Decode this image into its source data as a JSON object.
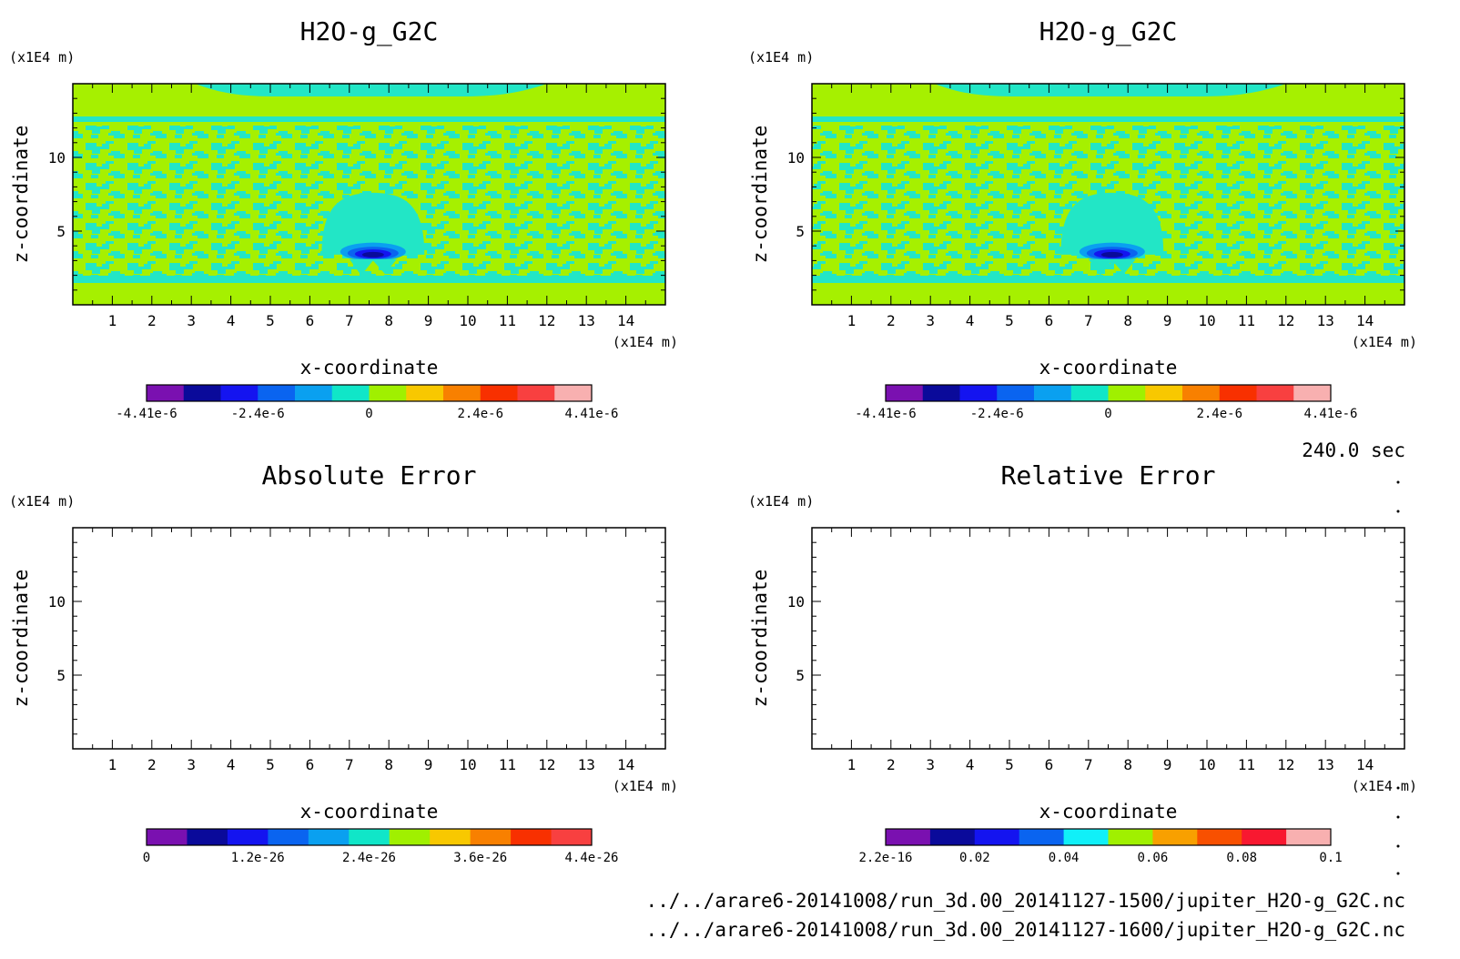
{
  "chart_data": [
    {
      "type": "heatmap",
      "title": "H2O-g_G2C",
      "xlabel": "x-coordinate",
      "ylabel": "z-coordinate",
      "x_unit": "(x1E4 m)",
      "y_unit": "(x1E4 m)",
      "xlim": [
        0,
        15
      ],
      "ylim": [
        0,
        15
      ],
      "x_ticks": [
        "1",
        "2",
        "3",
        "4",
        "5",
        "6",
        "7",
        "8",
        "9",
        "10",
        "11",
        "12",
        "13",
        "14"
      ],
      "y_ticks": [
        "5",
        "10"
      ],
      "colorbar": {
        "colors": [
          "#7a10b0",
          "#0a0a9a",
          "#1414f0",
          "#0a64f0",
          "#0aa0f0",
          "#10e6c8",
          "#a0f000",
          "#f8c800",
          "#f88000",
          "#f83000",
          "#f84040",
          "#f8b0b0"
        ],
        "labels": [
          "-4.41e-6",
          "-2.4e-6",
          "0",
          "2.4e-6",
          "4.41e-6"
        ]
      }
    },
    {
      "type": "heatmap",
      "title": "H2O-g_G2C",
      "xlabel": "x-coordinate",
      "ylabel": "z-coordinate",
      "x_unit": "(x1E4 m)",
      "y_unit": "(x1E4 m)",
      "xlim": [
        0,
        15
      ],
      "ylim": [
        0,
        15
      ],
      "x_ticks": [
        "1",
        "2",
        "3",
        "4",
        "5",
        "6",
        "7",
        "8",
        "9",
        "10",
        "11",
        "12",
        "13",
        "14"
      ],
      "y_ticks": [
        "5",
        "10"
      ],
      "colorbar": {
        "colors": [
          "#7a10b0",
          "#0a0a9a",
          "#1414f0",
          "#0a64f0",
          "#0aa0f0",
          "#10e6c8",
          "#a0f000",
          "#f8c800",
          "#f88000",
          "#f83000",
          "#f84040",
          "#f8b0b0"
        ],
        "labels": [
          "-4.41e-6",
          "-2.4e-6",
          "0",
          "2.4e-6",
          "4.41e-6"
        ]
      }
    },
    {
      "type": "heatmap",
      "title": "Absolute Error",
      "xlabel": "x-coordinate",
      "ylabel": "z-coordinate",
      "x_unit": "(x1E4 m)",
      "y_unit": "(x1E4 m)",
      "xlim": [
        0,
        15
      ],
      "ylim": [
        0,
        15
      ],
      "x_ticks": [
        "1",
        "2",
        "3",
        "4",
        "5",
        "6",
        "7",
        "8",
        "9",
        "10",
        "11",
        "12",
        "13",
        "14"
      ],
      "y_ticks": [
        "5",
        "10"
      ],
      "colorbar": {
        "colors": [
          "#7a10b0",
          "#0a0a9a",
          "#1414f0",
          "#0a64f0",
          "#0aa0f0",
          "#10e6c8",
          "#a0f000",
          "#f8c800",
          "#f88000",
          "#f83000",
          "#f84040"
        ],
        "labels": [
          "0",
          "1.2e-26",
          "2.4e-26",
          "3.6e-26",
          "4.4e-26"
        ]
      }
    },
    {
      "type": "heatmap",
      "title": "Relative Error",
      "xlabel": "x-coordinate",
      "ylabel": "z-coordinate",
      "x_unit": "(x1E4 m)",
      "y_unit": "(x1E4 m)",
      "xlim": [
        0,
        15
      ],
      "ylim": [
        0,
        15
      ],
      "x_ticks": [
        "1",
        "2",
        "3",
        "4",
        "5",
        "6",
        "7",
        "8",
        "9",
        "10",
        "11",
        "12",
        "13",
        "14"
      ],
      "y_ticks": [
        "5",
        "10"
      ],
      "colorbar": {
        "colors": [
          "#7a10b0",
          "#0a0a9a",
          "#1414f0",
          "#0a64f0",
          "#10f0f8",
          "#a0f000",
          "#f8a000",
          "#f85000",
          "#f81830",
          "#f8b0b0"
        ],
        "labels": [
          "2.2e-16",
          "0.02",
          "0.04",
          "0.06",
          "0.08",
          "0.1"
        ]
      }
    }
  ],
  "time_label": "240.0 sec",
  "footer_lines": [
    "../../arare6-20141008/run_3d.00_20141127-1500/jupiter_H2O-g_G2C.nc",
    "../../arare6-20141008/run_3d.00_20141127-1600/jupiter_H2O-g_G2C.nc"
  ]
}
